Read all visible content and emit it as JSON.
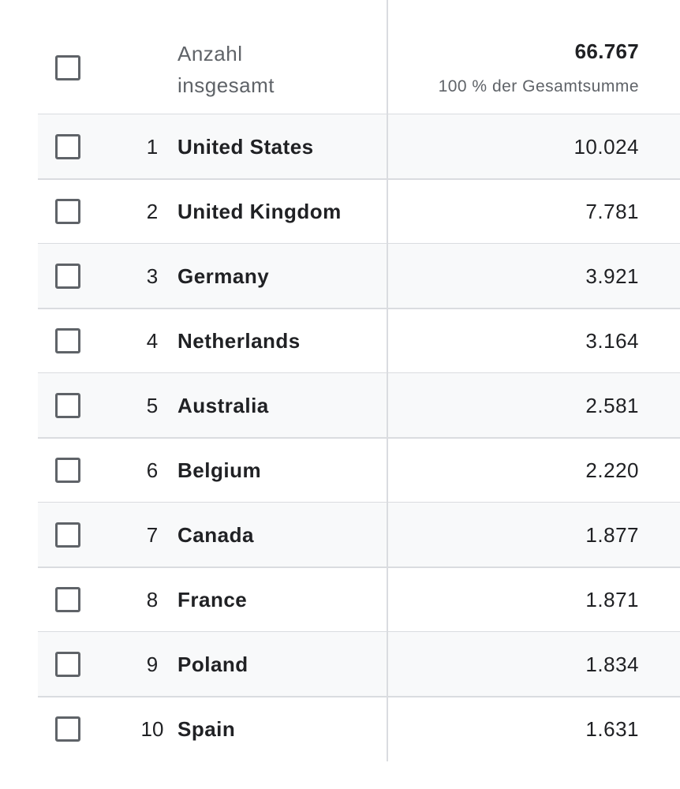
{
  "header": {
    "label_line1": "Anzahl",
    "label_line2": "insgesamt",
    "total": "66.767",
    "total_sub": "100 % der Gesamtsumme"
  },
  "rows": [
    {
      "rank": "1",
      "country": "United States",
      "value": "10.024"
    },
    {
      "rank": "2",
      "country": "United Kingdom",
      "value": "7.781"
    },
    {
      "rank": "3",
      "country": "Germany",
      "value": "3.921"
    },
    {
      "rank": "4",
      "country": "Netherlands",
      "value": "3.164"
    },
    {
      "rank": "5",
      "country": "Australia",
      "value": "2.581"
    },
    {
      "rank": "6",
      "country": "Belgium",
      "value": "2.220"
    },
    {
      "rank": "7",
      "country": "Canada",
      "value": "1.877"
    },
    {
      "rank": "8",
      "country": "France",
      "value": "1.871"
    },
    {
      "rank": "9",
      "country": "Poland",
      "value": "1.834"
    },
    {
      "rank": "10",
      "country": "Spain",
      "value": "1.631"
    }
  ]
}
